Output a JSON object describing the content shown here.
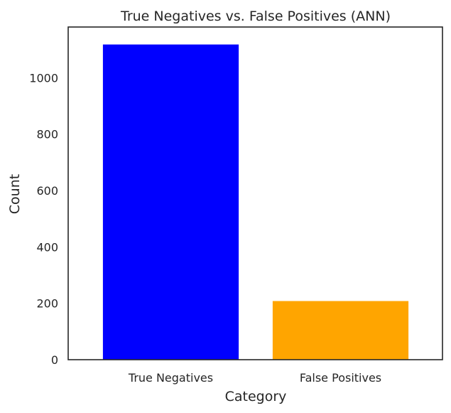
{
  "chart_data": {
    "type": "bar",
    "title": "True Negatives vs. False Positives (ANN)",
    "xlabel": "Category",
    "ylabel": "Count",
    "categories": [
      "True Negatives",
      "False Positives"
    ],
    "values": [
      1118,
      208
    ],
    "colors": [
      "#0000ff",
      "#ffa500"
    ],
    "ylim": [
      0,
      1180
    ],
    "yticks": [
      0,
      200,
      400,
      600,
      800,
      1000
    ],
    "grid": false,
    "legend": "none"
  }
}
